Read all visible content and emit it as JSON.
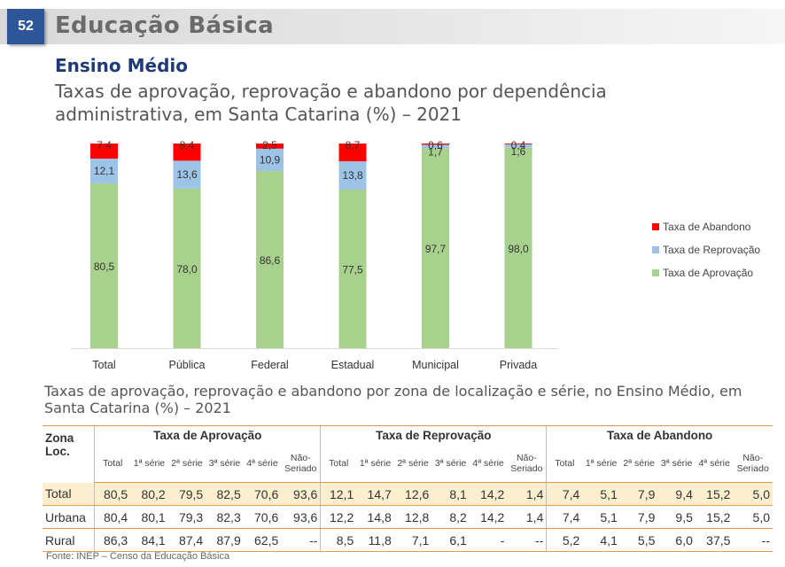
{
  "header": {
    "page_number": "52",
    "title": "Educação Básica"
  },
  "section": {
    "title": "Ensino Médio"
  },
  "chart_title": "Taxas de aprovação, reprovação e abandono por dependência administrativa, em Santa Catarina (%) – 2021",
  "chart_data": {
    "type": "bar",
    "stacked": true,
    "title": "Taxas de aprovação, reprovação e abandono por dependência administrativa, em Santa Catarina (%) – 2021",
    "categories": [
      "Total",
      "Pública",
      "Federal",
      "Estadual",
      "Municipal",
      "Privada"
    ],
    "series": [
      {
        "name": "Taxa de Aprovação",
        "color": "#a9d18e",
        "values": [
          80.5,
          78.0,
          86.6,
          77.5,
          97.7,
          98.0
        ],
        "labels": [
          "80,5",
          "78,0",
          "86,6",
          "77,5",
          "97,7",
          "98,0"
        ]
      },
      {
        "name": "Taxa de Reprovação",
        "color": "#9dc3e6",
        "values": [
          12.1,
          13.6,
          10.9,
          13.8,
          1.7,
          1.6
        ],
        "labels": [
          "12,1",
          "13,6",
          "10,9",
          "13,8",
          "1,7",
          "1,6"
        ]
      },
      {
        "name": "Taxa de Abandono",
        "color": "#ff0000",
        "values": [
          7.4,
          8.4,
          2.5,
          8.7,
          0.6,
          0.4
        ],
        "labels": [
          "7,4",
          "8,4",
          "2,5",
          "8,7",
          "0,6",
          "0,4"
        ]
      }
    ],
    "legend_order": [
      "Taxa de Abandono",
      "Taxa de Reprovação",
      "Taxa de Aprovação"
    ],
    "legend_position": "right",
    "ylim": [
      0,
      100
    ],
    "grid": false
  },
  "table": {
    "title": "Taxas de aprovação, reprovação e abandono por zona de localização e série, no Ensino Médio, em Santa Catarina (%) – 2021",
    "zona_header": "Zona Loc.",
    "groups": [
      "Taxa de Aprovação",
      "Taxa de Reprovação",
      "Taxa de Abandono"
    ],
    "columns": [
      "Total",
      "1ª série",
      "2ª série",
      "3ª série",
      "4ª série",
      "Não-Seriado"
    ],
    "rows": [
      {
        "zona": "Total",
        "values": [
          "80,5",
          "80,2",
          "79,5",
          "82,5",
          "70,6",
          "93,6",
          "12,1",
          "14,7",
          "12,6",
          "8,1",
          "14,2",
          "1,4",
          "7,4",
          "5,1",
          "7,9",
          "9,4",
          "15,2",
          "5,0"
        ]
      },
      {
        "zona": "Urbana",
        "values": [
          "80,4",
          "80,1",
          "79,3",
          "82,3",
          "70,6",
          "93,6",
          "12,2",
          "14,8",
          "12,8",
          "8,2",
          "14,2",
          "1,4",
          "7,4",
          "5,1",
          "7,9",
          "9,5",
          "15,2",
          "5,0"
        ]
      },
      {
        "zona": "Rural",
        "values": [
          "86,3",
          "84,1",
          "87,4",
          "87,9",
          "62,5",
          "--",
          "8,5",
          "11,8",
          "7,1",
          "6,1",
          "-",
          "--",
          "5,2",
          "4,1",
          "5,5",
          "6,0",
          "37,5",
          "--"
        ]
      }
    ]
  },
  "source": "Fonte: INEP – Censo da Educação Básica"
}
